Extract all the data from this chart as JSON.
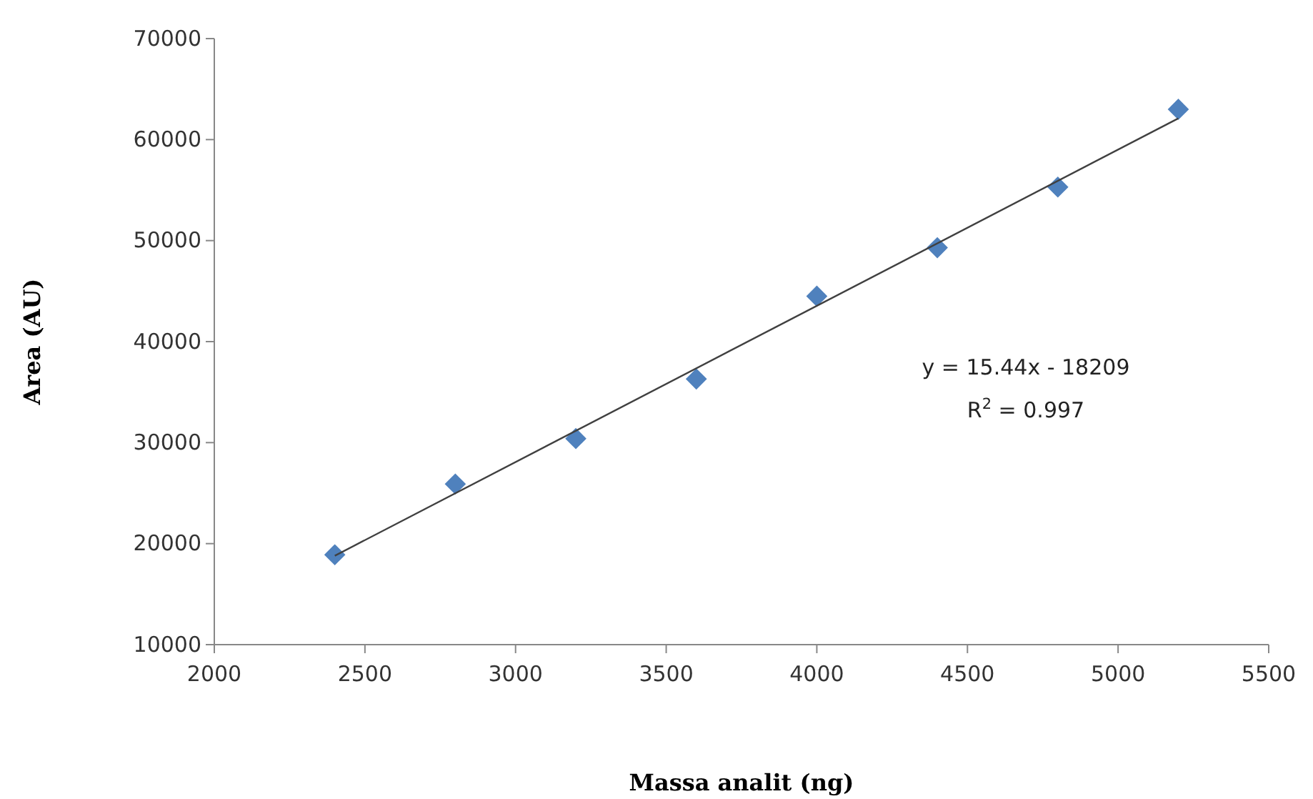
{
  "chart_data": {
    "type": "scatter",
    "xlabel": "Massa analit (ng)",
    "ylabel": "Area (AU)",
    "series": [
      {
        "color": "#4f81bd",
        "marker": "diamond",
        "x": [
          2400,
          2800,
          3200,
          3600,
          4000,
          4400,
          4800,
          5200
        ],
        "values": [
          18900,
          25900,
          30400,
          36300,
          44500,
          49300,
          55300,
          63000
        ]
      },
      {
        "type": "line",
        "color": "#404040",
        "marker": "none",
        "x": [
          2400,
          5200
        ],
        "values": [
          18800,
          62100
        ]
      }
    ],
    "xlim": [
      2000,
      5500
    ],
    "xticks": [
      2000,
      2500,
      3000,
      3500,
      4000,
      4500,
      5000,
      5500
    ],
    "ylim": [
      10000,
      70000
    ],
    "yticks": [
      10000,
      20000,
      30000,
      40000,
      50000,
      60000,
      70000
    ],
    "grid": false,
    "annotations": [
      "y = 15.44x - 18209",
      "R$^{2}$ = 0.997"
    ]
  }
}
